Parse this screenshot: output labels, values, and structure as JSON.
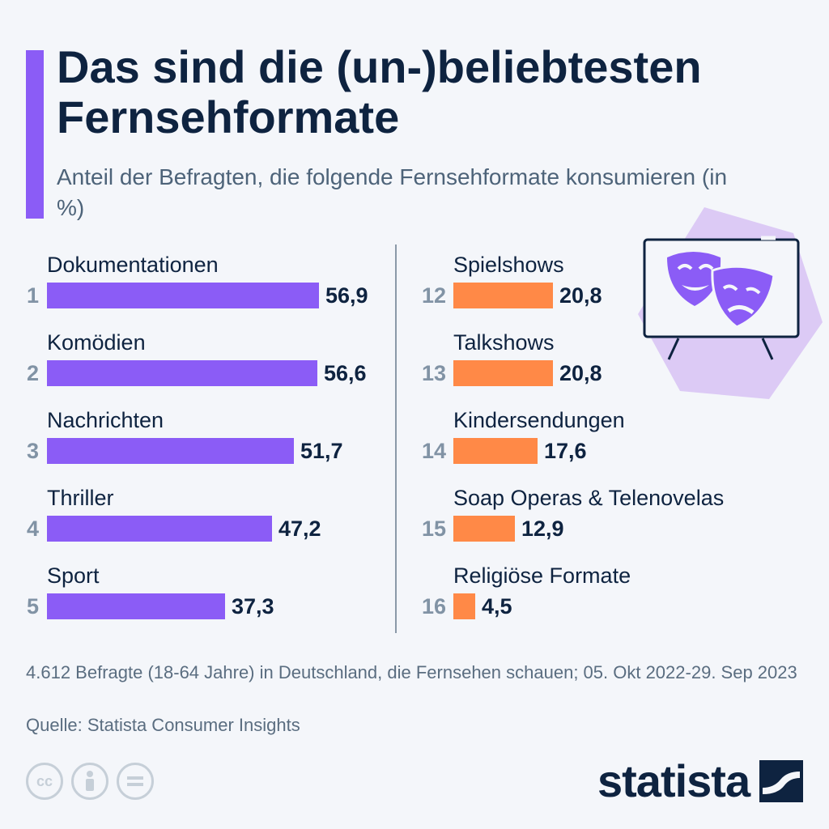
{
  "title": "Das sind die (un-)beliebtesten Fernsehformate",
  "subtitle": "Anteil der Befragten, die folgende Fernsehformate konsumieren (in %)",
  "colors": {
    "accent": "#8b5cf6",
    "top_bars": "#8b5cf6",
    "bottom_bars": "#ff8947",
    "text": "#0e2340",
    "background": "#f4f6fa"
  },
  "chart_data": [
    {
      "type": "bar",
      "orientation": "horizontal",
      "group": "top",
      "ranks": [
        "1",
        "2",
        "3",
        "4",
        "5"
      ],
      "categories": [
        "Dokumentationen",
        "Komödien",
        "Nachrichten",
        "Thriller",
        "Sport"
      ],
      "values": [
        56.9,
        56.6,
        51.7,
        47.2,
        37.3
      ],
      "value_labels": [
        "56,9",
        "56,6",
        "51,7",
        "47,2",
        "37,3"
      ],
      "xlim": [
        0,
        60
      ],
      "grid": false
    },
    {
      "type": "bar",
      "orientation": "horizontal",
      "group": "bottom",
      "ranks": [
        "12",
        "13",
        "14",
        "15",
        "16"
      ],
      "categories": [
        "Spielshows",
        "Talkshows",
        "Kindersendungen",
        "Soap Operas & Telenovelas",
        "Religiöse Formate"
      ],
      "values": [
        20.8,
        20.8,
        17.6,
        12.9,
        4.5
      ],
      "value_labels": [
        "20,8",
        "20,8",
        "17,6",
        "12,9",
        "4,5"
      ],
      "xlim": [
        0,
        60
      ],
      "grid": false
    }
  ],
  "illustration": {
    "icon": "theater-masks-tv-icon"
  },
  "footnote": "4.612 Befragte (18-64 Jahre) in Deutschland, die Fernsehen schauen; 05. Okt 2022-29. Sep 2023",
  "source": "Quelle: Statista Consumer Insights",
  "license_icons": [
    "cc-icon",
    "by-person-icon",
    "nd-equals-icon"
  ],
  "logo_text": "statista"
}
